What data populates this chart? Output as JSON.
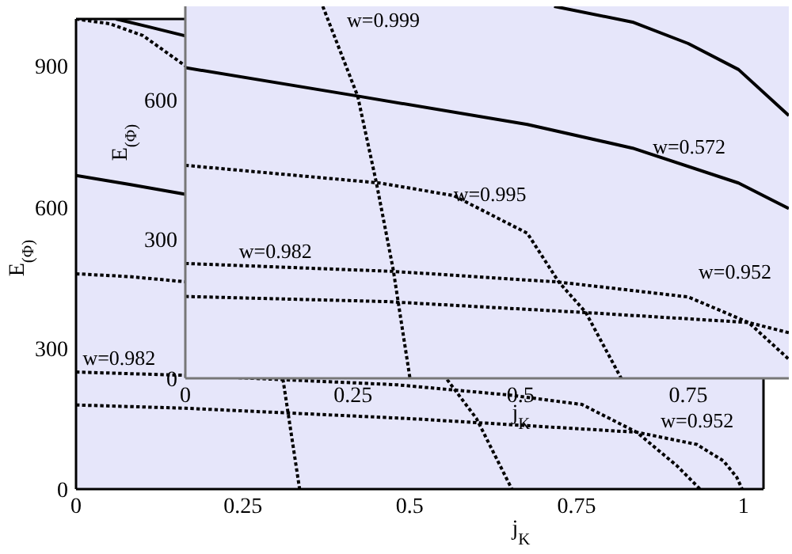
{
  "chart_data": [
    {
      "type": "line",
      "xlabel": "j$_{K}$",
      "ylabel": "E$_{(Φ)}$",
      "xlim": [
        0,
        1.03
      ],
      "ylim": [
        0,
        1000
      ],
      "xticks": [
        0,
        0.25,
        0.5,
        0.75,
        1
      ],
      "yticks": [
        0,
        300,
        600,
        900
      ],
      "series": [
        {
          "color": "#000000",
          "line_style": "solid",
          "x": [
            0.06,
            0.11,
            0.164
          ],
          "values": [
            1000,
            983,
            964
          ]
        },
        {
          "color": "#000000",
          "line_style": "solid",
          "x": [
            0,
            0.08,
            0.164
          ],
          "values": [
            667,
            648,
            627
          ]
        },
        {
          "color": "#000000",
          "line_style": "dotted",
          "x": [
            0,
            0.05,
            0.1,
            0.164,
            0.2,
            0.31,
            0.335
          ],
          "values": [
            1000,
            990,
            965,
            900,
            null,
            234,
            0
          ]
        },
        {
          "color": "#000000",
          "line_style": "dotted",
          "x": [
            0,
            0.08,
            0.164,
            0.3,
            0.556,
            0.6,
            0.653
          ],
          "values": [
            458,
            452,
            441,
            null,
            233,
            150,
            0
          ]
        },
        {
          "color": "#000000",
          "line_style": "dotted",
          "x": [
            0,
            0.164,
            0.48,
            0.65,
            0.758,
            0.84,
            0.9,
            0.935
          ],
          "values": [
            249,
            242,
            222,
            200,
            180,
            121,
            50,
            0
          ]
        },
        {
          "color": "#000000",
          "line_style": "dotted",
          "x": [
            0,
            0.164,
            0.5,
            0.84,
            0.93,
            0.97,
            0.99,
            0.998
          ],
          "values": [
            179,
            172,
            150,
            121,
            95,
            60,
            25,
            0
          ]
        }
      ],
      "annotations": [
        {
          "text": "w=0.982",
          "x": 0.01,
          "y": 265
        },
        {
          "text": "w=0.952",
          "x": 0.876,
          "y": 131
        }
      ]
    },
    {
      "type": "line",
      "xlabel": "j$_{K}$",
      "ylabel": "E$_{(Φ)}$",
      "xlim": [
        0,
        0.9
      ],
      "ylim": [
        0,
        800
      ],
      "xticks": [
        0,
        0.25,
        0.5,
        0.75
      ],
      "yticks": [
        0,
        300,
        600
      ],
      "series": [
        {
          "color": "#000000",
          "line_style": "solid",
          "x": [
            0.55,
            0.667,
            0.75,
            0.825,
            0.9
          ],
          "values": [
            800,
            766,
            720,
            664,
            565
          ]
        },
        {
          "color": "#000000",
          "line_style": "solid",
          "x": [
            0,
            0.257,
            0.51,
            0.667,
            0.825,
            0.9
          ],
          "values": [
            668,
            607,
            546,
            495,
            420,
            365
          ]
        },
        {
          "color": "#000000",
          "line_style": "dotted",
          "x": [
            0.205,
            0.257,
            0.285,
            0.31,
            0.335
          ],
          "values": [
            800,
            607,
            420,
            234,
            0
          ]
        },
        {
          "color": "#000000",
          "line_style": "dotted",
          "x": [
            0,
            0.29,
            0.4,
            0.51,
            0.557,
            0.597,
            0.65
          ],
          "values": [
            458,
            420,
            393,
            312,
            207,
            142,
            0
          ]
        },
        {
          "color": "#000000",
          "line_style": "dotted",
          "x": [
            0,
            0.309,
            0.557,
            0.75,
            0.84,
            0.9
          ],
          "values": [
            247,
            230,
            207,
            175,
            120,
            41
          ]
        },
        {
          "color": "#000000",
          "line_style": "dotted",
          "x": [
            0,
            0.3,
            0.59,
            0.84,
            0.9
          ],
          "values": [
            176,
            165,
            142,
            120,
            98
          ]
        }
      ],
      "annotations": [
        "w=0.999",
        {
          "text": "w=0.572",
          "x": 0.697,
          "y": 483
        },
        {
          "text": "w=0.995",
          "x": 0.4,
          "y": 381
        },
        {
          "text": "w=0.982",
          "x": 0.08,
          "y": 258
        },
        "w=0.952"
      ]
    }
  ]
}
